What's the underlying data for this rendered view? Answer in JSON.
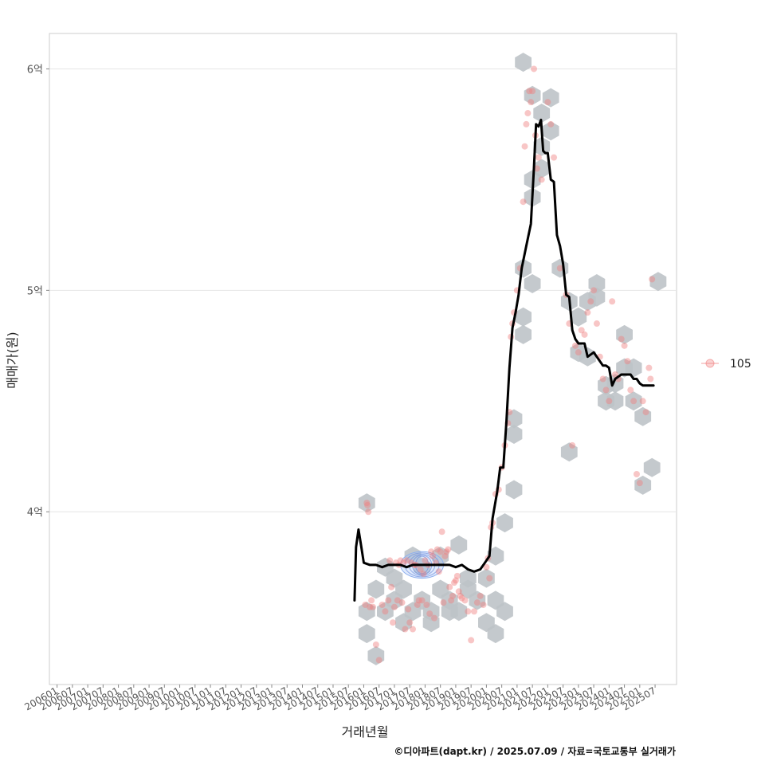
{
  "chart_data": {
    "type": "line",
    "title": "",
    "xlabel": "거래년월",
    "ylabel": "매매가(원)",
    "caption": "©디아파트(dapt.kr) / 2025.07.09 / 자료=국토교통부 실거래가",
    "x_ticks": [
      "200601",
      "200607",
      "200701",
      "200707",
      "200801",
      "200807",
      "200901",
      "200907",
      "201001",
      "201007",
      "201101",
      "201107",
      "201201",
      "201207",
      "201301",
      "201307",
      "201401",
      "201407",
      "201501",
      "201507",
      "201601",
      "201607",
      "201701",
      "201707",
      "201801",
      "201807",
      "201901",
      "201907",
      "202001",
      "202007",
      "202101",
      "202107",
      "202201",
      "202207",
      "202301",
      "202307",
      "202401",
      "202407",
      "202501",
      "202507"
    ],
    "x_range": [
      2005.75,
      2026.2
    ],
    "y_ticks": [
      {
        "value": 4.0,
        "label": "4억"
      },
      {
        "value": 5.0,
        "label": "5억"
      },
      {
        "value": 6.0,
        "label": "6억"
      }
    ],
    "y_range": [
      3.22,
      6.16
    ],
    "legend": [
      {
        "label": "105",
        "color": "#F08080"
      }
    ],
    "trend_line": {
      "name": "moving average",
      "color": "#000000",
      "x": [
        2015.7,
        2015.75,
        2015.83,
        2015.9,
        2016.0,
        2016.2,
        2016.4,
        2016.6,
        2016.8,
        2017.0,
        2017.2,
        2017.4,
        2017.6,
        2017.8,
        2018.0,
        2018.2,
        2018.4,
        2018.6,
        2018.8,
        2019.0,
        2019.2,
        2019.3,
        2019.4,
        2019.6,
        2019.8,
        2019.95,
        2020.1,
        2020.2,
        2020.35,
        2020.45,
        2020.55,
        2020.65,
        2020.75,
        2020.85,
        2020.95,
        2021.05,
        2021.15,
        2021.3,
        2021.45,
        2021.55,
        2021.62,
        2021.7,
        2021.78,
        2021.85,
        2021.92,
        2022.0,
        2022.1,
        2022.2,
        2022.3,
        2022.4,
        2022.5,
        2022.6,
        2022.7,
        2022.8,
        2022.9,
        2023.0,
        2023.1,
        2023.2,
        2023.3,
        2023.5,
        2023.6,
        2023.7,
        2023.8,
        2023.9,
        2024.0,
        2024.1,
        2024.2,
        2024.3,
        2024.4,
        2024.5,
        2024.6,
        2024.7,
        2024.8,
        2024.9,
        2025.0,
        2025.1,
        2025.2,
        2025.3,
        2025.45
      ],
      "y": [
        3.6,
        3.84,
        3.92,
        3.86,
        3.77,
        3.76,
        3.76,
        3.75,
        3.76,
        3.76,
        3.76,
        3.75,
        3.76,
        3.76,
        3.76,
        3.76,
        3.76,
        3.76,
        3.76,
        3.75,
        3.76,
        3.75,
        3.74,
        3.73,
        3.74,
        3.77,
        3.8,
        3.97,
        4.09,
        4.2,
        4.2,
        4.4,
        4.65,
        4.83,
        4.9,
        4.98,
        5.1,
        5.2,
        5.3,
        5.55,
        5.75,
        5.74,
        5.77,
        5.63,
        5.62,
        5.62,
        5.5,
        5.49,
        5.25,
        5.2,
        5.12,
        4.98,
        4.97,
        4.82,
        4.78,
        4.76,
        4.76,
        4.76,
        4.7,
        4.72,
        4.7,
        4.68,
        4.66,
        4.66,
        4.65,
        4.57,
        4.6,
        4.61,
        4.62,
        4.62,
        4.62,
        4.62,
        4.6,
        4.6,
        4.58,
        4.57,
        4.57,
        4.57,
        4.57
      ]
    },
    "scatter_series": {
      "name": "105",
      "color": "#F08080",
      "x": [
        2016.1,
        2016.15,
        2016.12,
        2016.05,
        2016.2,
        2016.25,
        2016.3,
        2016.4,
        2016.5,
        2016.6,
        2016.7,
        2016.8,
        2016.85,
        2016.9,
        2016.95,
        2017.0,
        2017.05,
        2017.1,
        2017.15,
        2017.2,
        2017.25,
        2017.3,
        2017.35,
        2017.4,
        2017.45,
        2017.5,
        2017.55,
        2017.6,
        2017.65,
        2017.7,
        2017.75,
        2017.8,
        2017.85,
        2017.9,
        2017.95,
        2018.0,
        2018.05,
        2018.1,
        2018.15,
        2018.2,
        2018.25,
        2018.3,
        2018.35,
        2018.4,
        2018.45,
        2018.5,
        2018.55,
        2018.6,
        2018.65,
        2018.7,
        2018.75,
        2018.8,
        2018.85,
        2018.9,
        2018.95,
        2019.0,
        2019.05,
        2019.1,
        2019.15,
        2019.2,
        2019.3,
        2019.4,
        2019.5,
        2019.6,
        2019.7,
        2019.8,
        2019.9,
        2020.0,
        2020.05,
        2020.1,
        2020.15,
        2020.2,
        2020.3,
        2020.4,
        2020.5,
        2020.6,
        2020.7,
        2020.75,
        2020.8,
        2020.85,
        2020.9,
        2021.0,
        2021.1,
        2021.2,
        2021.25,
        2021.3,
        2021.35,
        2021.4,
        2021.45,
        2021.5,
        2021.55,
        2021.6,
        2021.65,
        2021.7,
        2021.8,
        2022.0,
        2022.1,
        2022.2,
        2022.4,
        2022.6,
        2022.7,
        2022.8,
        2022.9,
        2023.0,
        2023.1,
        2023.2,
        2023.3,
        2023.4,
        2023.5,
        2023.6,
        2023.7,
        2023.8,
        2023.9,
        2024.0,
        2024.1,
        2024.2,
        2024.3,
        2024.4,
        2024.5,
        2024.6,
        2024.7,
        2024.8,
        2024.9,
        2025.0,
        2025.1,
        2025.2,
        2025.3,
        2025.35,
        2025.4
      ],
      "y": [
        4.04,
        4.0,
        4.03,
        3.58,
        3.57,
        3.6,
        3.57,
        3.4,
        3.33,
        3.58,
        3.55,
        3.6,
        3.78,
        3.66,
        3.5,
        3.57,
        3.77,
        3.6,
        3.76,
        3.78,
        3.59,
        3.77,
        3.47,
        3.78,
        3.56,
        3.5,
        3.77,
        3.47,
        3.76,
        3.76,
        3.58,
        3.6,
        3.74,
        3.6,
        3.72,
        3.78,
        3.58,
        3.76,
        3.54,
        3.82,
        3.8,
        3.52,
        3.77,
        3.83,
        3.73,
        3.82,
        3.91,
        3.59,
        3.8,
        3.82,
        3.83,
        3.66,
        3.6,
        3.62,
        3.68,
        3.69,
        3.71,
        3.64,
        3.62,
        3.61,
        3.6,
        3.55,
        3.42,
        3.55,
        3.59,
        3.62,
        3.58,
        3.75,
        3.79,
        3.7,
        3.93,
        3.95,
        4.08,
        4.1,
        4.2,
        4.3,
        4.4,
        4.45,
        4.79,
        4.85,
        4.9,
        5.0,
        5.1,
        5.4,
        5.65,
        5.75,
        5.8,
        5.9,
        5.85,
        5.9,
        6.0,
        5.7,
        5.55,
        5.6,
        5.5,
        5.85,
        5.75,
        5.6,
        5.1,
        4.98,
        4.85,
        4.3,
        4.75,
        4.72,
        4.82,
        4.8,
        4.9,
        4.95,
        5.0,
        4.85,
        4.7,
        4.6,
        4.55,
        4.5,
        4.95,
        4.62,
        4.6,
        4.78,
        4.75,
        4.68,
        4.55,
        4.5,
        4.17,
        4.13,
        4.5,
        4.45,
        4.65,
        4.6,
        5.05
      ]
    },
    "hexbins": {
      "color": "#BEC3C8",
      "x": [
        2016.1,
        2016.1,
        2016.4,
        2016.1,
        2016.4,
        2016.7,
        2017.0,
        2017.3,
        2016.7,
        2017.0,
        2017.3,
        2017.6,
        2017.9,
        2018.2,
        2018.5,
        2017.6,
        2017.9,
        2018.2,
        2018.5,
        2018.8,
        2019.1,
        2019.4,
        2018.8,
        2019.1,
        2019.4,
        2019.7,
        2020.0,
        2020.3,
        2020.0,
        2020.3,
        2020.3,
        2020.6,
        2020.6,
        2020.9,
        2020.9,
        2020.9,
        2021.2,
        2021.2,
        2021.2,
        2021.5,
        2021.5,
        2021.8,
        2021.8,
        2021.5,
        2021.2,
        2021.5,
        2021.8,
        2022.1,
        2022.1,
        2022.4,
        2022.7,
        2022.7,
        2023.0,
        2023.0,
        2023.3,
        2023.3,
        2023.6,
        2023.6,
        2023.9,
        2023.9,
        2024.2,
        2024.2,
        2024.5,
        2024.5,
        2024.8,
        2024.8,
        2025.1,
        2025.1,
        2025.4,
        2025.6
      ],
      "y": [
        4.04,
        3.55,
        3.65,
        3.45,
        3.35,
        3.55,
        3.6,
        3.5,
        3.75,
        3.7,
        3.65,
        3.55,
        3.6,
        3.5,
        3.65,
        3.8,
        3.75,
        3.55,
        3.8,
        3.6,
        3.85,
        3.7,
        3.55,
        3.55,
        3.65,
        3.6,
        3.5,
        3.45,
        3.7,
        3.8,
        3.6,
        3.55,
        3.95,
        4.1,
        4.35,
        4.42,
        4.8,
        4.88,
        5.1,
        5.03,
        5.42,
        5.65,
        5.8,
        5.88,
        6.03,
        5.5,
        5.55,
        5.72,
        5.87,
        5.1,
        4.95,
        4.27,
        4.72,
        4.88,
        4.95,
        4.7,
        5.03,
        4.97,
        4.57,
        4.5,
        4.58,
        4.5,
        4.8,
        4.65,
        4.65,
        4.5,
        4.43,
        4.12,
        4.2,
        5.04
      ]
    },
    "density_cluster": {
      "x": [
        2017.2,
        2018.6
      ],
      "y": [
        3.7,
        3.82
      ],
      "center": 3.76
    }
  }
}
